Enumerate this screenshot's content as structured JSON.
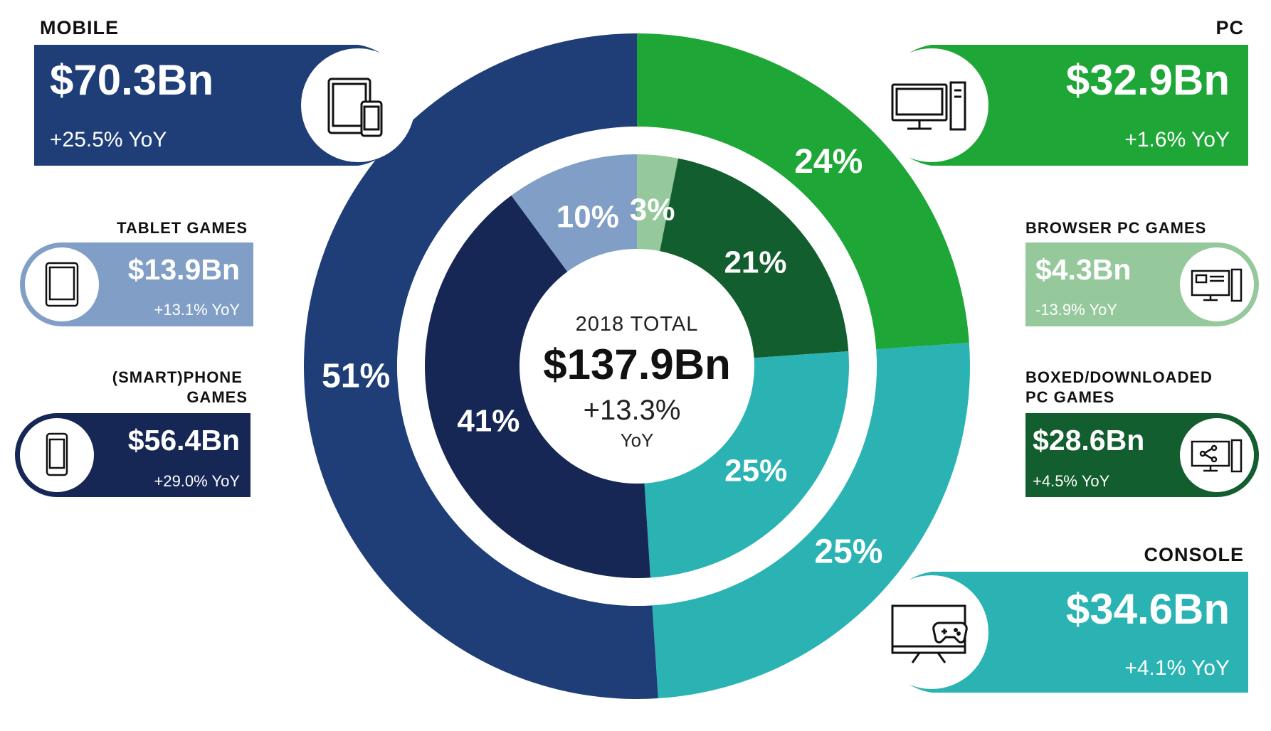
{
  "colors": {
    "mobile": "#1f3e78",
    "tablet": "#819fc6",
    "phone": "#172755",
    "pc": "#1ea637",
    "browser": "#95c99b",
    "boxed": "#135e2f",
    "console": "#2bb3b3",
    "white": "#ffffff"
  },
  "chart_data": {
    "type": "pie",
    "center": {
      "title": "2018 TOTAL",
      "value": "$137.9Bn",
      "growth": "+13.3%",
      "growth_unit": "YoY"
    },
    "outer_ring": [
      {
        "name": "MOBILE",
        "value": 70.3,
        "pct_label": "51%",
        "amount": "$70.3Bn",
        "yoy": "+25.5% YoY",
        "icon": "tablet-and-phone-icon"
      },
      {
        "name": "PC",
        "value": 32.9,
        "pct_label": "24%",
        "amount": "$32.9Bn",
        "yoy": "+1.6% YoY",
        "icon": "desktop-computer-icon"
      },
      {
        "name": "CONSOLE",
        "value": 34.6,
        "pct_label": "25%",
        "amount": "$34.6Bn",
        "yoy": "+4.1% YoY",
        "icon": "tv-gamepad-icon"
      }
    ],
    "inner_ring": [
      {
        "name": "TABLET GAMES",
        "value": 13.9,
        "pct_label": "10%",
        "amount": "$13.9Bn",
        "yoy": "+13.1% YoY",
        "icon": "tablet-icon"
      },
      {
        "name": "(SMART)PHONE GAMES",
        "value": 56.4,
        "pct_label": "41%",
        "amount": "$56.4Bn",
        "yoy": "+29.0% YoY",
        "icon": "smartphone-icon"
      },
      {
        "name": "BROWSER PC GAMES",
        "value": 4.3,
        "pct_label": "3%",
        "amount": "$4.3Bn",
        "yoy": "-13.9% YoY",
        "icon": "browser-pc-icon"
      },
      {
        "name": "BOXED/DOWNLOADED PC GAMES",
        "value": 28.6,
        "pct_label": "21%",
        "amount": "$28.6Bn",
        "yoy": "+4.5% YoY",
        "icon": "share-pc-icon"
      },
      {
        "name": "CONSOLE",
        "value": 34.6,
        "pct_label": "25%"
      }
    ]
  }
}
